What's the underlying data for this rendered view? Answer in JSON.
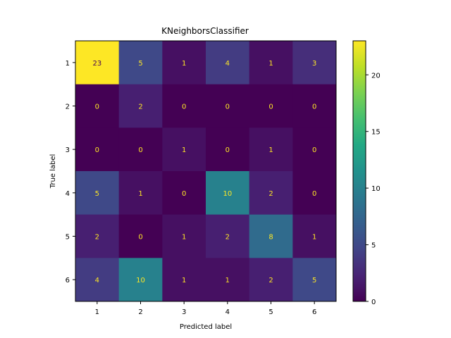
{
  "chart_data": {
    "type": "heatmap",
    "title": "KNeighborsClassifier",
    "xlabel": "Predicted label",
    "ylabel": "True label",
    "x_categories": [
      "1",
      "2",
      "3",
      "4",
      "5",
      "6"
    ],
    "y_categories": [
      "1",
      "2",
      "3",
      "4",
      "5",
      "6"
    ],
    "values": [
      [
        23,
        5,
        1,
        4,
        1,
        3
      ],
      [
        0,
        2,
        0,
        0,
        0,
        0
      ],
      [
        0,
        0,
        1,
        0,
        1,
        0
      ],
      [
        5,
        1,
        0,
        10,
        2,
        0
      ],
      [
        2,
        0,
        1,
        2,
        8,
        1
      ],
      [
        4,
        10,
        1,
        1,
        2,
        5
      ]
    ],
    "colorbar": {
      "colormap": "viridis",
      "range": [
        0,
        23
      ],
      "ticks": [
        0,
        5,
        10,
        15,
        20
      ]
    },
    "text_colors": {
      "on_dark": "#fde725",
      "on_light": "#440154"
    },
    "grid": false
  }
}
